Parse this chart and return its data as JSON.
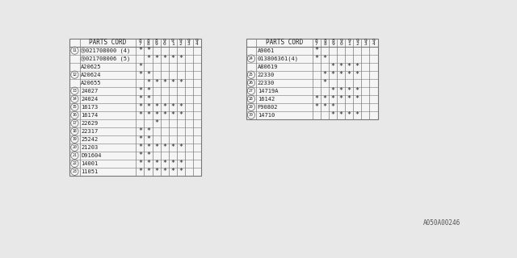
{
  "watermark": "A050A00246",
  "col_headers": [
    "8\n7",
    "8\n8",
    "8\n9",
    "9\n0",
    "9\n1",
    "9\n2",
    "9\n3",
    "9\n4"
  ],
  "left_table": {
    "header": "PARTS CORD",
    "rows": [
      {
        "num": "11",
        "parts": [
          "N021708000 (4)",
          "N021708006 (5)"
        ],
        "marks": [
          [
            1,
            1,
            0,
            0,
            0,
            0,
            0,
            0
          ],
          [
            0,
            1,
            1,
            1,
            1,
            1,
            0,
            0
          ]
        ]
      },
      {
        "num": "",
        "parts": [
          "A20625"
        ],
        "marks": [
          [
            1,
            0,
            0,
            0,
            0,
            0,
            0,
            0
          ]
        ]
      },
      {
        "num": "12",
        "parts": [
          "A20624",
          "A20655"
        ],
        "marks": [
          [
            1,
            1,
            0,
            0,
            0,
            0,
            0,
            0
          ],
          [
            0,
            1,
            1,
            1,
            1,
            1,
            0,
            0
          ]
        ]
      },
      {
        "num": "13",
        "parts": [
          "24027"
        ],
        "marks": [
          [
            1,
            1,
            0,
            0,
            0,
            0,
            0,
            0
          ]
        ]
      },
      {
        "num": "14",
        "parts": [
          "24024"
        ],
        "marks": [
          [
            1,
            1,
            0,
            0,
            0,
            0,
            0,
            0
          ]
        ]
      },
      {
        "num": "15",
        "parts": [
          "16173"
        ],
        "marks": [
          [
            1,
            1,
            1,
            1,
            1,
            1,
            0,
            0
          ]
        ]
      },
      {
        "num": "16",
        "parts": [
          "16174"
        ],
        "marks": [
          [
            1,
            1,
            1,
            1,
            1,
            1,
            0,
            0
          ]
        ]
      },
      {
        "num": "17",
        "parts": [
          "22629"
        ],
        "marks": [
          [
            0,
            0,
            1,
            0,
            0,
            0,
            0,
            0
          ]
        ]
      },
      {
        "num": "18",
        "parts": [
          "22317"
        ],
        "marks": [
          [
            1,
            1,
            0,
            0,
            0,
            0,
            0,
            0
          ]
        ]
      },
      {
        "num": "19",
        "parts": [
          "25242"
        ],
        "marks": [
          [
            1,
            1,
            0,
            0,
            0,
            0,
            0,
            0
          ]
        ]
      },
      {
        "num": "20",
        "parts": [
          "21203"
        ],
        "marks": [
          [
            1,
            1,
            1,
            1,
            1,
            1,
            0,
            0
          ]
        ]
      },
      {
        "num": "21",
        "parts": [
          "D91604"
        ],
        "marks": [
          [
            1,
            1,
            0,
            0,
            0,
            0,
            0,
            0
          ]
        ]
      },
      {
        "num": "22",
        "parts": [
          "14001"
        ],
        "marks": [
          [
            1,
            1,
            1,
            1,
            1,
            1,
            0,
            0
          ]
        ]
      },
      {
        "num": "23",
        "parts": [
          "11051"
        ],
        "marks": [
          [
            1,
            1,
            1,
            1,
            1,
            1,
            0,
            0
          ]
        ]
      }
    ]
  },
  "right_table": {
    "header": "PARTS CORD",
    "rows": [
      {
        "num": "",
        "parts": [
          "A9061"
        ],
        "marks": [
          [
            1,
            0,
            0,
            0,
            0,
            0,
            0,
            0
          ]
        ]
      },
      {
        "num": "24",
        "parts": [
          "013806361(4)",
          "A80619"
        ],
        "marks": [
          [
            1,
            1,
            0,
            0,
            0,
            0,
            0,
            0
          ],
          [
            0,
            0,
            1,
            1,
            1,
            1,
            0,
            0
          ]
        ]
      },
      {
        "num": "25",
        "parts": [
          "22330"
        ],
        "marks": [
          [
            0,
            1,
            1,
            1,
            1,
            1,
            0,
            0
          ]
        ]
      },
      {
        "num": "26",
        "parts": [
          "22330"
        ],
        "marks": [
          [
            0,
            1,
            0,
            0,
            0,
            0,
            0,
            0
          ]
        ]
      },
      {
        "num": "27",
        "parts": [
          "14719A"
        ],
        "marks": [
          [
            0,
            0,
            1,
            1,
            1,
            1,
            0,
            0
          ]
        ]
      },
      {
        "num": "28",
        "parts": [
          "16142"
        ],
        "marks": [
          [
            1,
            1,
            1,
            1,
            1,
            1,
            0,
            0
          ]
        ]
      },
      {
        "num": "29",
        "parts": [
          "F90802"
        ],
        "marks": [
          [
            1,
            1,
            1,
            0,
            0,
            0,
            0,
            0
          ]
        ]
      },
      {
        "num": "30",
        "parts": [
          "14710"
        ],
        "marks": [
          [
            0,
            0,
            1,
            1,
            1,
            1,
            0,
            0
          ]
        ]
      }
    ]
  },
  "bg_color": "#e8e8e8",
  "line_color": "#777777",
  "text_color": "#222222",
  "font_size": 5.0
}
